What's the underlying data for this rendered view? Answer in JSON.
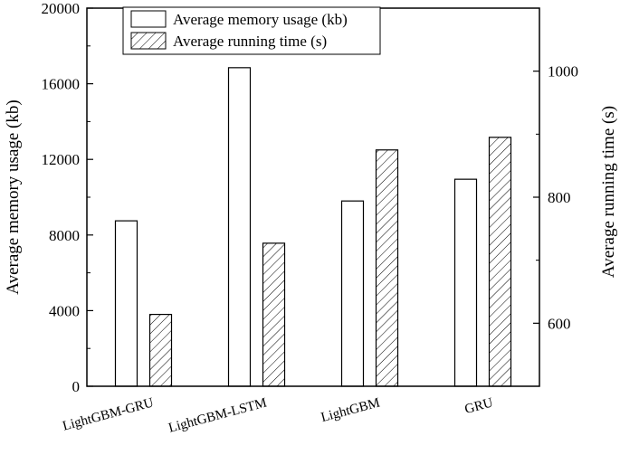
{
  "chart_data": {
    "type": "bar",
    "categories": [
      "LightGBM-GRU",
      "LightGBM-LSTM",
      "LightGBM",
      "GRU"
    ],
    "series": [
      {
        "name": "Average memory usage (kb)",
        "axis": "left",
        "pattern": "empty",
        "values": [
          8750,
          16850,
          9800,
          10950
        ]
      },
      {
        "name": "Average running time (s)",
        "axis": "right",
        "pattern": "hatched",
        "values": [
          614,
          727,
          875,
          895
        ]
      }
    ],
    "ylabel": "Average memory usage (kb)",
    "y2label": "Average running time (s)",
    "ylim": [
      0,
      20000
    ],
    "y2lim": [
      500,
      1100
    ],
    "yticks": [
      "0",
      "4000",
      "8000",
      "12000",
      "16000",
      "20000"
    ],
    "y2ticks": [
      "600",
      "800",
      "1000"
    ],
    "legend_placement": "top-center",
    "grid": false
  }
}
